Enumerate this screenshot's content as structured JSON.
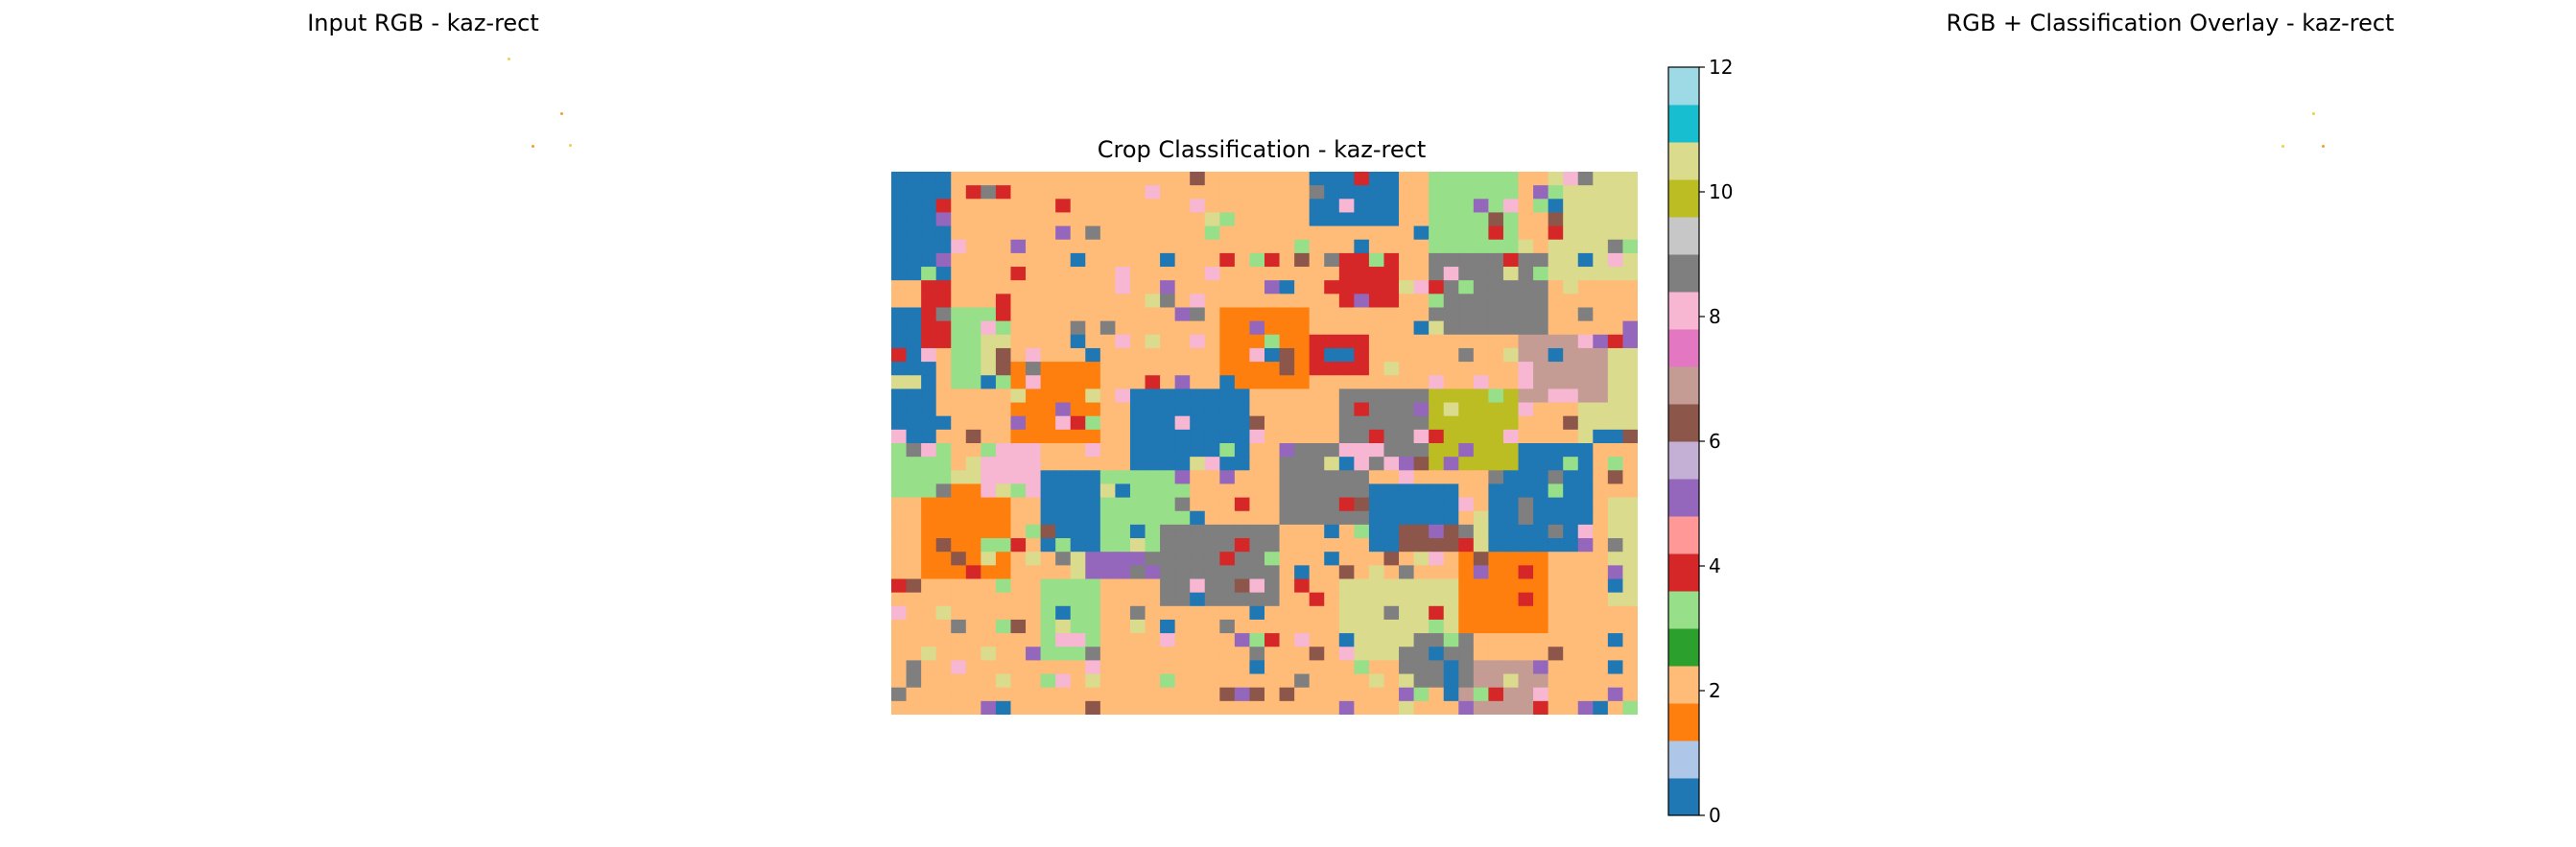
{
  "panels": {
    "left_title": "Input RGB - kaz-rect",
    "center_title": "Crop Classification - kaz-rect",
    "right_title": "RGB + Classification Overlay - kaz-rect"
  },
  "colors": {
    "speck_yellow": "#e8d44a",
    "speck_orange": "#f0a030"
  },
  "chart_data": {
    "type": "heatmap",
    "title": "Crop Classification - kaz-rect",
    "classes": [
      0,
      1,
      2,
      3,
      4,
      5,
      6,
      7,
      8,
      9,
      10,
      11,
      12
    ],
    "colorbar": {
      "vmin": 0,
      "vmax": 12,
      "ticks": [
        0,
        2,
        4,
        6,
        8,
        10,
        12
      ],
      "colors": [
        "#1f77b4",
        "#aec7e8",
        "#ff7f0e",
        "#ffbb78",
        "#2ca02c",
        "#98df8a",
        "#d62728",
        "#ff9896",
        "#9467bd",
        "#c5b0d5",
        "#8c564b",
        "#c49c94",
        "#e377c2",
        "#f7b6d2",
        "#7f7f7f",
        "#c7c7c7",
        "#bcbd22",
        "#dbdb8d",
        "#17becf",
        "#9edae5"
      ]
    },
    "fields": [
      {
        "cls": 0,
        "cells": [
          [
            0,
            0,
            4,
            8
          ],
          [
            28,
            0,
            6,
            10
          ],
          [
            0,
            10,
            3,
            12
          ],
          [
            16,
            16,
            8,
            6
          ],
          [
            40,
            20,
            7,
            8
          ],
          [
            10,
            22,
            6,
            6
          ],
          [
            32,
            23,
            6,
            5
          ]
        ]
      },
      {
        "cls": 2,
        "cells": [
          [
            4,
            0,
            8,
            5
          ],
          [
            12,
            2,
            6,
            8
          ],
          [
            24,
            4,
            10,
            6
          ],
          [
            16,
            8,
            6,
            7
          ],
          [
            0,
            24,
            6,
            4
          ],
          [
            44,
            30,
            6,
            6
          ],
          [
            22,
            30,
            8,
            6
          ],
          [
            8,
            33,
            6,
            5
          ]
        ]
      },
      {
        "cls": 1,
        "cells": [
          [
            22,
            10,
            6,
            6
          ],
          [
            8,
            14,
            6,
            6
          ],
          [
            2,
            22,
            6,
            8
          ],
          [
            38,
            28,
            6,
            6
          ]
        ]
      },
      {
        "cls": 3,
        "cells": [
          [
            0,
            20,
            4,
            4
          ],
          [
            14,
            22,
            6,
            6
          ],
          [
            10,
            30,
            4,
            6
          ],
          [
            36,
            0,
            6,
            6
          ],
          [
            4,
            10,
            4,
            6
          ]
        ]
      },
      {
        "cls": 9,
        "cells": [
          [
            36,
            6,
            8,
            6
          ],
          [
            30,
            16,
            8,
            6
          ],
          [
            18,
            26,
            8,
            6
          ],
          [
            26,
            20,
            6,
            6
          ]
        ]
      },
      {
        "cls": 11,
        "cells": [
          [
            44,
            0,
            6,
            8
          ],
          [
            46,
            12,
            4,
            8
          ],
          [
            30,
            30,
            8,
            6
          ],
          [
            48,
            24,
            2,
            8
          ],
          [
            6,
            12,
            2,
            3
          ]
        ]
      },
      {
        "cls": 4,
        "cells": [
          [
            30,
            6,
            4,
            4
          ],
          [
            28,
            12,
            4,
            3
          ],
          [
            2,
            8,
            2,
            5
          ]
        ]
      },
      {
        "cls": 10,
        "cells": [
          [
            36,
            16,
            6,
            6
          ]
        ]
      },
      {
        "cls": 7,
        "cells": [
          [
            42,
            12,
            6,
            5
          ],
          [
            38,
            36,
            6,
            4
          ]
        ]
      },
      {
        "cls": 8,
        "cells": [
          [
            6,
            20,
            4,
            4
          ],
          [
            30,
            20,
            4,
            2
          ]
        ]
      },
      {
        "cls": 9,
        "cells": [
          [
            34,
            34,
            5,
            4
          ]
        ]
      },
      {
        "cls": 5,
        "cells": [
          [
            12,
            28,
            6,
            2
          ]
        ]
      },
      {
        "cls": 6,
        "cells": [
          [
            34,
            26,
            6,
            2
          ]
        ]
      }
    ]
  }
}
